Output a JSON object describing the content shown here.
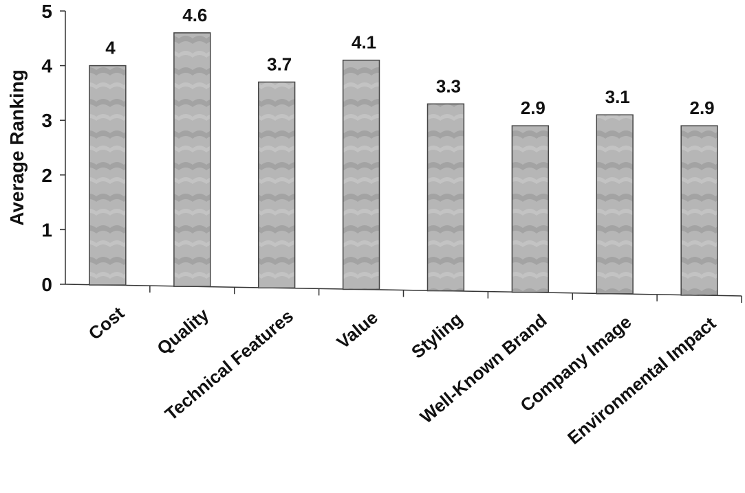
{
  "chart_data": {
    "type": "bar",
    "categories": [
      "Cost",
      "Quality",
      "Technical Features",
      "Value",
      "Styling",
      "Well-Known Brand",
      "Company Image",
      "Environmental Impact"
    ],
    "values": [
      4,
      4.6,
      3.7,
      4.1,
      3.3,
      2.9,
      3.1,
      2.9
    ],
    "data_labels": [
      "4",
      "4.6",
      "3.7",
      "4.1",
      "3.3",
      "2.9",
      "3.1",
      "2.9"
    ],
    "ylabel": "Average Ranking",
    "ylim": [
      0,
      5
    ],
    "yticks": [
      "0",
      "1",
      "2",
      "3",
      "4",
      "5"
    ],
    "grid": false,
    "bar_color": "#b4b4b4"
  }
}
